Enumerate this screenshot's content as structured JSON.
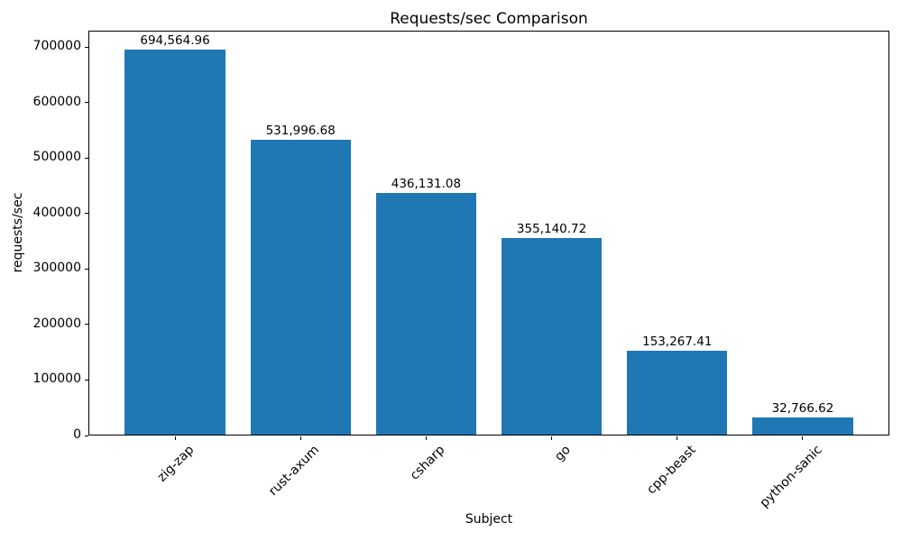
{
  "chart_data": {
    "type": "bar",
    "title": "Requests/sec Comparison",
    "xlabel": "Subject",
    "ylabel": "requests/sec",
    "categories": [
      "zig-zap",
      "rust-axum",
      "csharp",
      "go",
      "cpp-beast",
      "python-sanic"
    ],
    "values": [
      694564.96,
      531996.68,
      436131.08,
      355140.72,
      153267.41,
      32766.62
    ],
    "value_labels": [
      "694,564.96",
      "531,996.68",
      "436,131.08",
      "355,140.72",
      "153,267.41",
      "32,766.62"
    ],
    "yticks": [
      0,
      100000,
      200000,
      300000,
      400000,
      500000,
      600000,
      700000
    ],
    "ytick_labels": [
      "0",
      "100000",
      "200000",
      "300000",
      "400000",
      "500000",
      "600000",
      "700000"
    ],
    "ylim": [
      0,
      729293
    ],
    "bar_color": "#1f77b4",
    "grid": false,
    "legend": "none",
    "x_tick_rotation_deg": 45
  }
}
